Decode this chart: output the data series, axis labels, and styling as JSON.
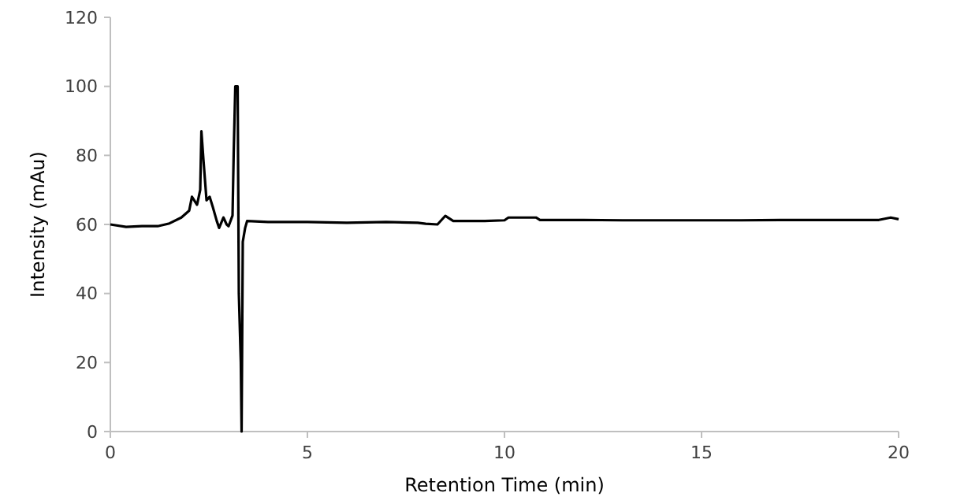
{
  "chart_data": {
    "type": "line",
    "xlabel": "Retention Time (min)",
    "ylabel": "Intensity (mAu)",
    "xlim": [
      0,
      20
    ],
    "ylim": [
      0,
      120
    ],
    "xticks": [
      0,
      5,
      10,
      15,
      20
    ],
    "yticks": [
      0,
      20,
      40,
      60,
      80,
      100,
      120
    ],
    "grid": false,
    "marker": "none",
    "line_style": "solid",
    "series": [
      {
        "color": "#000000",
        "x": [
          0,
          0.4,
          0.8,
          1.2,
          1.5,
          1.8,
          2.0,
          2.07,
          2.2,
          2.28,
          2.31,
          2.36,
          2.44,
          2.52,
          2.6,
          2.7,
          2.76,
          2.87,
          2.95,
          3.0,
          3.1,
          3.13,
          3.17,
          3.23,
          3.26,
          3.31,
          3.33,
          3.36,
          3.42,
          3.47,
          4,
          5,
          6,
          7,
          7.8,
          8.0,
          8.3,
          8.5,
          8.7,
          9,
          9.5,
          10.0,
          10.1,
          10.8,
          10.9,
          12,
          13,
          14,
          15,
          16,
          17,
          18,
          19,
          19.5,
          19.8,
          20
        ],
        "values": [
          60,
          59.3,
          59.5,
          59.5,
          60.3,
          62,
          64,
          68,
          65.7,
          70,
          87,
          79,
          67,
          68,
          65,
          61,
          59,
          62,
          60,
          59.5,
          62.6,
          81,
          100,
          100,
          40,
          20,
          0,
          55,
          59,
          61,
          60.7,
          60.7,
          60.5,
          60.7,
          60.5,
          60.2,
          60,
          62.5,
          61,
          61,
          61,
          61.2,
          62,
          62,
          61.3,
          61.3,
          61.2,
          61.2,
          61.2,
          61.2,
          61.3,
          61.3,
          61.3,
          61.3,
          62,
          61.5
        ]
      }
    ]
  }
}
